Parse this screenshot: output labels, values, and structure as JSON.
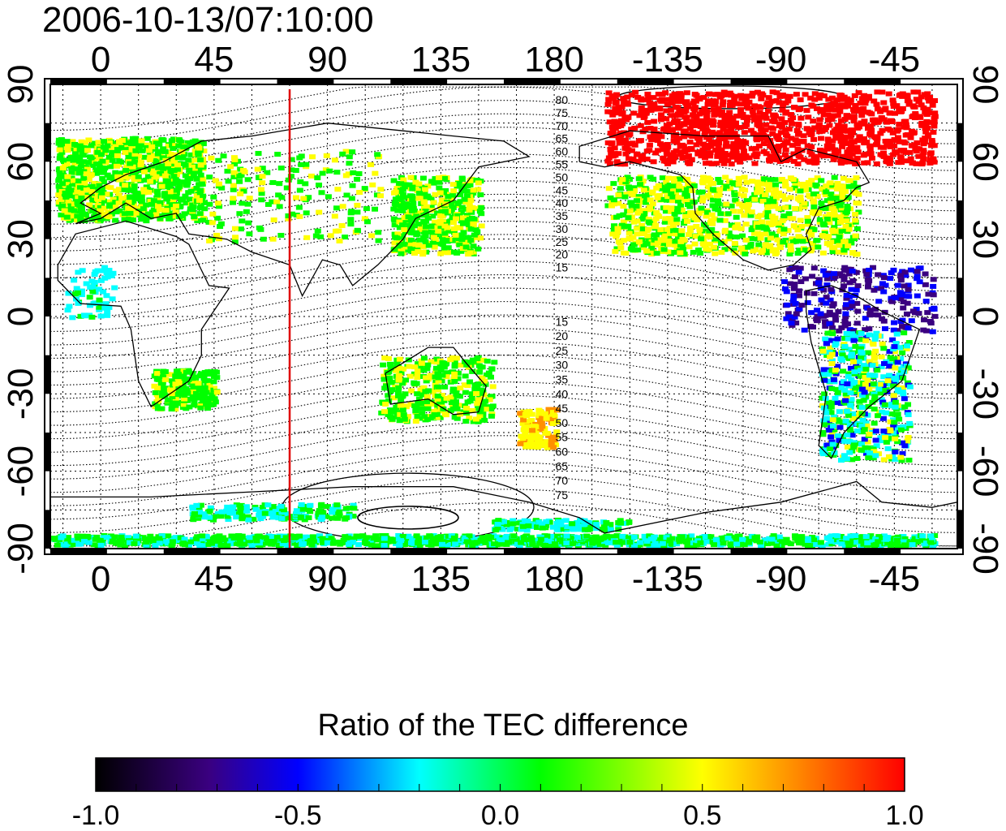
{
  "title": "2006-10-13/07:10:00",
  "axes": {
    "top_lon_ticks": [
      "0",
      "45",
      "90",
      "135",
      "180",
      "-135",
      "-90",
      "-45"
    ],
    "bottom_lon_ticks": [
      "0",
      "45",
      "90",
      "135",
      "180",
      "-135",
      "-90",
      "-45"
    ],
    "left_lat_ticks": [
      "90",
      "60",
      "30",
      "0",
      "-30",
      "-60",
      "-90"
    ],
    "right_lat_ticks": [
      "90",
      "60",
      "30",
      "0",
      "-30",
      "-60",
      "-90"
    ]
  },
  "map": {
    "lon_center": 160,
    "lon_range": [
      -20,
      340
    ],
    "lat_range": [
      -90,
      90
    ],
    "grid": "dotted 15deg",
    "marker_longitude": 75,
    "marker_color": "#e00000",
    "contours": "magnetic latitude (dotted)",
    "contour_labels_north": [
      "80",
      "75",
      "70",
      "65",
      "60",
      "55",
      "50",
      "45",
      "40",
      "35",
      "30",
      "25",
      "20",
      "15"
    ],
    "contour_labels_south": [
      "15",
      "20",
      "25",
      "30",
      "35",
      "40",
      "45",
      "50",
      "55",
      "60",
      "65",
      "70",
      "75"
    ]
  },
  "colorbar": {
    "title": "Ratio of the TEC difference",
    "range": [
      -1.0,
      1.0
    ],
    "tick_labels": [
      "-1.0",
      "-0.5",
      "0.0",
      "0.5",
      "1.0"
    ],
    "tick_values": [
      -1.0,
      -0.5,
      0.0,
      0.5,
      1.0
    ],
    "colors": [
      "#000000",
      "#3a0080",
      "#0000ff",
      "#00ffff",
      "#00ff00",
      "#ffff00",
      "#ff9000",
      "#ff0000"
    ]
  },
  "data_regions": [
    {
      "name": "europe",
      "ratio": 0.05
    },
    {
      "name": "east-asia",
      "ratio": 0.05
    },
    {
      "name": "north-america",
      "ratio": 0.1
    },
    {
      "name": "canada-arctic",
      "ratio": 0.95
    },
    {
      "name": "south-america",
      "ratio": -0.4
    },
    {
      "name": "central-america",
      "ratio": -0.85
    },
    {
      "name": "antarctic",
      "ratio": -0.2
    },
    {
      "name": "australia",
      "ratio": 0.05
    },
    {
      "name": "south-africa",
      "ratio": 0.05
    },
    {
      "name": "new-zealand",
      "ratio": 0.45
    }
  ]
}
